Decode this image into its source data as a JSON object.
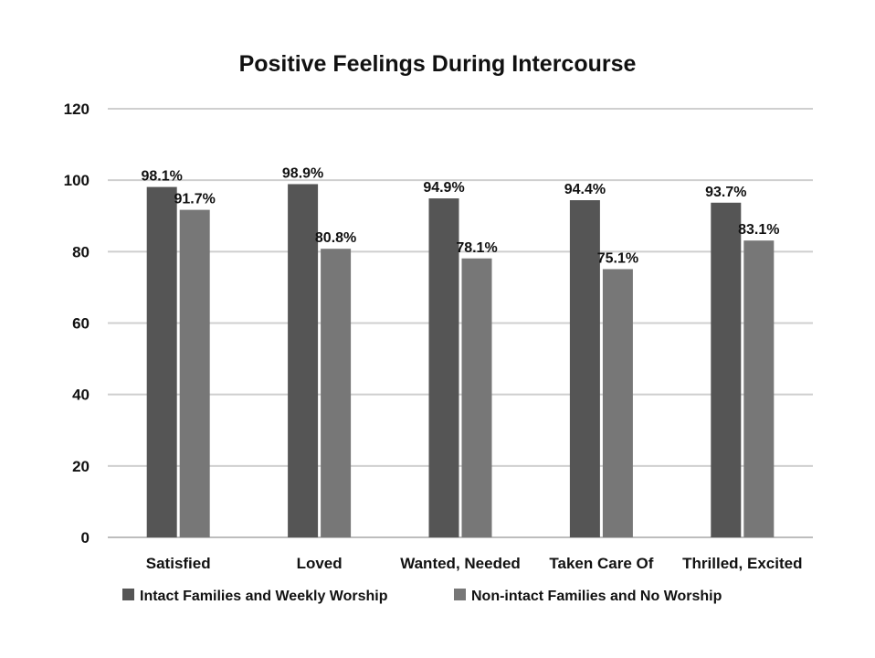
{
  "chart_data": {
    "type": "bar",
    "title": "Positive Feelings During Intercourse",
    "categories": [
      "Satisfied",
      "Loved",
      "Wanted, Needed",
      "Taken Care Of",
      "Thrilled, Excited"
    ],
    "series": [
      {
        "name": "Intact Families and Weekly Worship",
        "values": [
          98.1,
          98.9,
          94.9,
          94.4,
          93.7
        ],
        "labels": [
          "98.1%",
          "98.9%",
          "94.9%",
          "94.4%",
          "93.7%"
        ],
        "color": "#555555"
      },
      {
        "name": "Non-intact Families and No Worship",
        "values": [
          91.7,
          80.8,
          78.1,
          75.1,
          83.1
        ],
        "labels": [
          "91.7%",
          "80.8%",
          "78.1%",
          "75.1%",
          "83.1%"
        ],
        "color": "#777777"
      }
    ],
    "ylim": [
      0,
      120
    ],
    "yticks": [
      "0",
      "20",
      "40",
      "60",
      "80",
      "100",
      "120"
    ],
    "ytick_values": [
      0,
      20,
      40,
      60,
      80,
      100,
      120
    ],
    "grid": true,
    "legend": "bottom"
  }
}
